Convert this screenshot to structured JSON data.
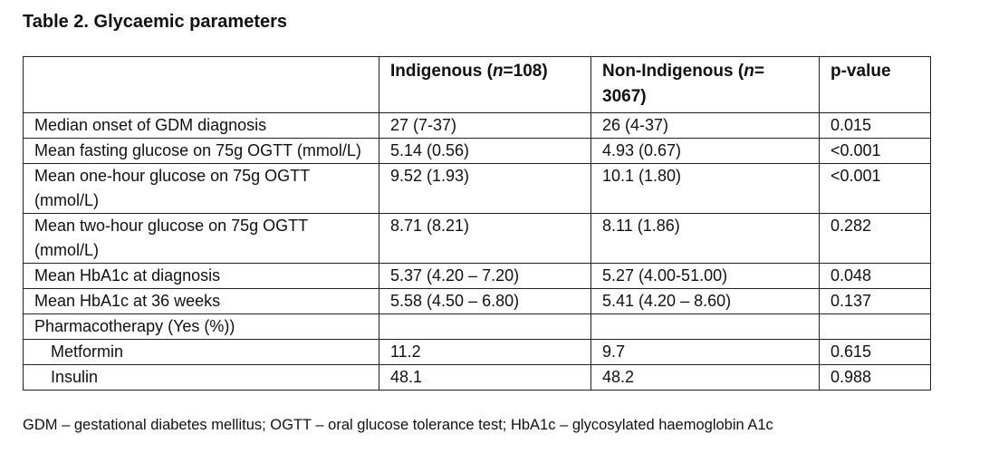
{
  "title": "Table 2. Glycaemic parameters",
  "table": {
    "header": [
      [
        ""
      ],
      [
        "Indigenous (",
        "n",
        "=108)"
      ],
      [
        "Non-Indigenous (",
        "n",
        "=",
        "3067)"
      ],
      [
        "p-value"
      ]
    ],
    "rows": [
      {
        "cells": [
          "Median onset of GDM diagnosis",
          "27 (7-37)",
          "26 (4-37)",
          "0.015"
        ]
      },
      {
        "cells": [
          "Mean fasting glucose on 75g OGTT (mmol/L)",
          "5.14 (0.56)",
          "4.93 (0.67)",
          "<0.001"
        ]
      },
      {
        "cells": [
          "Mean one-hour glucose on 75g OGTT (mmol/L)",
          "9.52 (1.93)",
          "10.1 (1.80)",
          "<0.001"
        ]
      },
      {
        "cells": [
          "Mean two-hour glucose on 75g OGTT (mmol/L)",
          "8.71 (8.21)",
          "8.11 (1.86)",
          "0.282"
        ]
      },
      {
        "cells": [
          "Mean HbA1c at diagnosis",
          "5.37 (4.20 – 7.20)",
          "5.27 (4.00-51.00)",
          "0.048"
        ]
      },
      {
        "cells": [
          "Mean HbA1c at 36 weeks",
          "5.58 (4.50 – 6.80)",
          "5.41 (4.20 – 8.60)",
          "0.137"
        ]
      },
      {
        "cells": [
          "Pharmacotherapy (Yes (%))",
          "",
          "",
          ""
        ],
        "sub_rows": [
          [
            "Metformin",
            "11.2",
            "9.7",
            "0.615"
          ],
          [
            "Insulin",
            "48.1",
            "48.2",
            "0.988"
          ]
        ]
      }
    ]
  },
  "footnote": "GDM – gestational diabetes mellitus; OGTT – oral glucose tolerance test; HbA1c – glycosylated haemoglobin A1c"
}
